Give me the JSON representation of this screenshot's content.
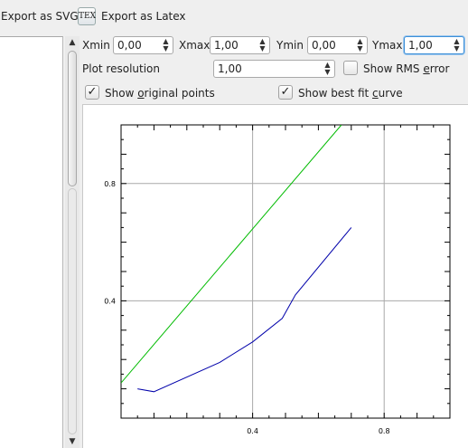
{
  "toolbar": {
    "export_svg_label": "Export as SVG",
    "export_latex_label": "Export as Latex",
    "latex_icon_text": "TEX"
  },
  "range": {
    "xmin_label": "Xmin",
    "xmin_value": "0,00",
    "xmax_label": "Xmax",
    "xmax_value": "1,00",
    "ymin_label": "Ymin",
    "ymin_value": "0,00",
    "ymax_label": "Ymax",
    "ymax_value": "1,00"
  },
  "resolution": {
    "label": "Plot resolution",
    "value": "1,00"
  },
  "options": {
    "show_rms_error": {
      "pre": "Show RMS ",
      "ul": "e",
      "post": "rror",
      "checked": false
    },
    "show_original_points": {
      "pre": "Show ",
      "ul": "o",
      "post": "riginal points",
      "checked": true
    },
    "show_best_fit_curve": {
      "pre": "Show best fit ",
      "ul": "c",
      "post": "urve",
      "checked": true
    }
  },
  "icons": {
    "check": "checkmark-icon",
    "spin_up": "triangle-up-icon",
    "spin_down": "triangle-down-icon"
  },
  "chart_data": {
    "type": "line",
    "xlim": [
      0.0,
      1.0
    ],
    "ylim": [
      0.0,
      1.0
    ],
    "grid": true,
    "x_ticks": [
      0.4,
      0.8
    ],
    "y_ticks": [
      0.4,
      0.8
    ],
    "x_tick_labels": [
      "0.4",
      "0.8"
    ],
    "y_tick_labels": [
      "0.4",
      "0.8"
    ],
    "series": [
      {
        "color": "#00bb00",
        "x": [
          0.0,
          0.67
        ],
        "y": [
          0.12,
          1.0
        ]
      },
      {
        "color": "#0000aa",
        "x": [
          0.05,
          0.1,
          0.3,
          0.4,
          0.49,
          0.53,
          0.7
        ],
        "y": [
          0.1,
          0.09,
          0.19,
          0.26,
          0.34,
          0.42,
          0.65
        ]
      }
    ],
    "colors": {
      "grid": "#a9a9a9",
      "axis": "#000000"
    }
  }
}
